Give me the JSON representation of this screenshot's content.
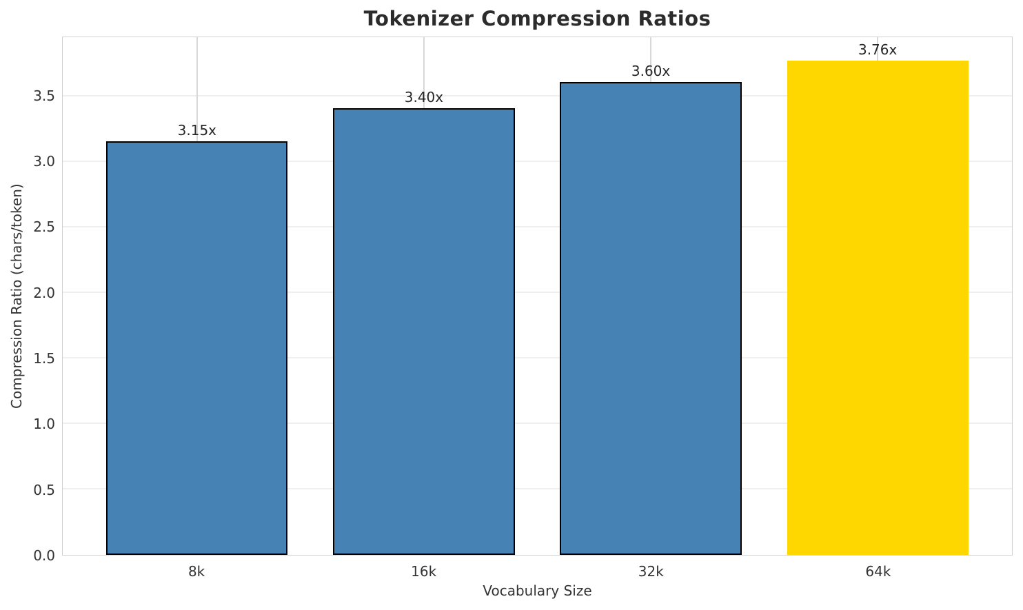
{
  "chart_data": {
    "type": "bar",
    "title": "Tokenizer Compression Ratios",
    "xlabel": "Vocabulary Size",
    "ylabel": "Compression Ratio (chars/token)",
    "categories": [
      "8k",
      "16k",
      "32k",
      "64k"
    ],
    "values": [
      3.15,
      3.4,
      3.6,
      3.76
    ],
    "bar_labels": [
      "3.15x",
      "3.40x",
      "3.60x",
      "3.76x"
    ],
    "bar_colors": [
      "#4682b4",
      "#4682b4",
      "#4682b4",
      "#ffd700"
    ],
    "bar_edge_colors": [
      "#000000",
      "#000000",
      "#000000",
      "none"
    ],
    "bar_width_fraction": 0.8,
    "ylim": [
      0,
      3.95
    ],
    "yticks": [
      0.0,
      0.5,
      1.0,
      1.5,
      2.0,
      2.5,
      3.0,
      3.5
    ],
    "ytick_labels": [
      "0.0",
      "0.5",
      "1.0",
      "1.5",
      "2.0",
      "2.5",
      "3.0",
      "3.5"
    ],
    "grid": "both",
    "legend": "none",
    "plot_background": "#ffffff",
    "spine_color": "#d2d2d2",
    "hgrid_color": "#efefef",
    "vgrid_color": "#d8d8d8",
    "text_color": "#262626"
  }
}
